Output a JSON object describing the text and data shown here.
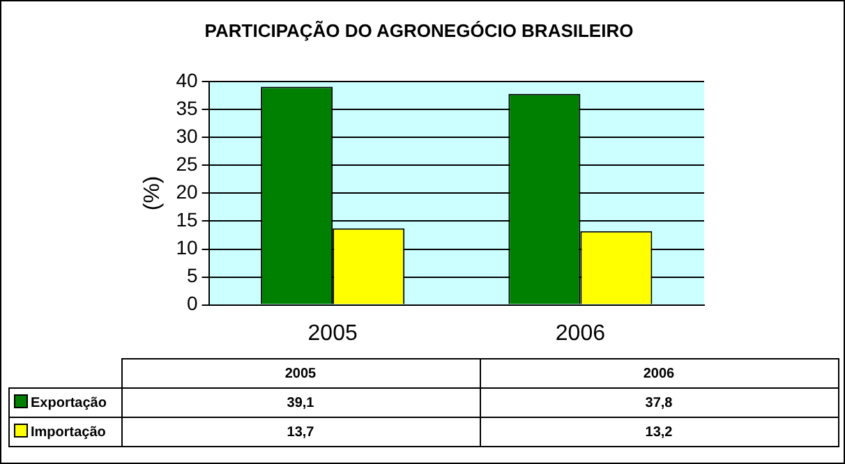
{
  "chart_data": {
    "type": "bar",
    "title": "PARTICIPAÇÃO DO AGRONEGÓCIO BRASILEIRO",
    "ylabel": "(%)",
    "categories": [
      "2005",
      "2006"
    ],
    "series": [
      {
        "name": "Exportação",
        "color": "#008000",
        "values": [
          39.1,
          37.8
        ],
        "value_labels": [
          "39,1",
          "37,8"
        ]
      },
      {
        "name": "Importação",
        "color": "#ffff00",
        "values": [
          13.7,
          13.2
        ],
        "value_labels": [
          "13,7",
          "13,2"
        ]
      }
    ],
    "ylim": [
      0,
      40
    ],
    "yticks": [
      0,
      5,
      10,
      15,
      20,
      25,
      30,
      35,
      40
    ],
    "grid": "y",
    "legend": "bottom"
  }
}
